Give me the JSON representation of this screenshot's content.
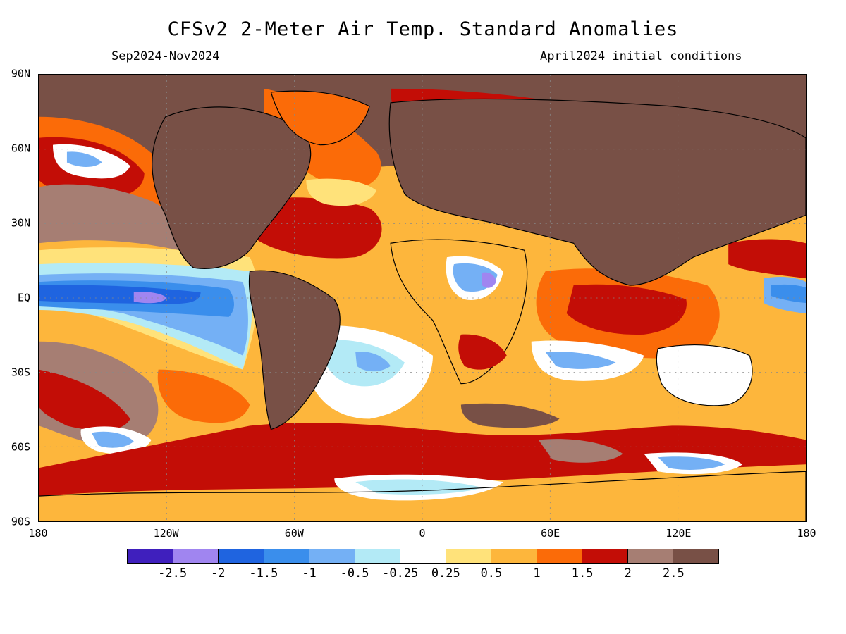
{
  "title": "CFSv2 2-Meter Air Temp. Standard Anomalies",
  "subtitle_left": "Sep2024-Nov2024",
  "subtitle_right": "April2024 initial conditions",
  "lat_labels": [
    "90N",
    "60N",
    "30N",
    "EQ",
    "30S",
    "60S",
    "90S"
  ],
  "lat_values": [
    90,
    60,
    30,
    0,
    -30,
    -60,
    -90
  ],
  "lon_labels": [
    "180",
    "120W",
    "60W",
    "0",
    "60E",
    "120E",
    "180"
  ],
  "lon_values": [
    -180,
    -120,
    -60,
    0,
    60,
    120,
    180
  ],
  "legend": {
    "colors": [
      "#3f1fbd",
      "#a085f0",
      "#1f64e0",
      "#3a8eec",
      "#74b0f5",
      "#b3eaf6",
      "#ffffff",
      "#ffe27a",
      "#fdb63c",
      "#fb6b08",
      "#c30d06",
      "#a67e73",
      "#785046"
    ],
    "labels": [
      "-2.5",
      "-2",
      "-1.5",
      "-1",
      "-0.5",
      "-0.25",
      "0.25",
      "0.5",
      "1",
      "1.5",
      "2",
      "2.5"
    ]
  },
  "map": {
    "background_color": "#fdb63c",
    "land_anomaly_color": "#785046"
  }
}
